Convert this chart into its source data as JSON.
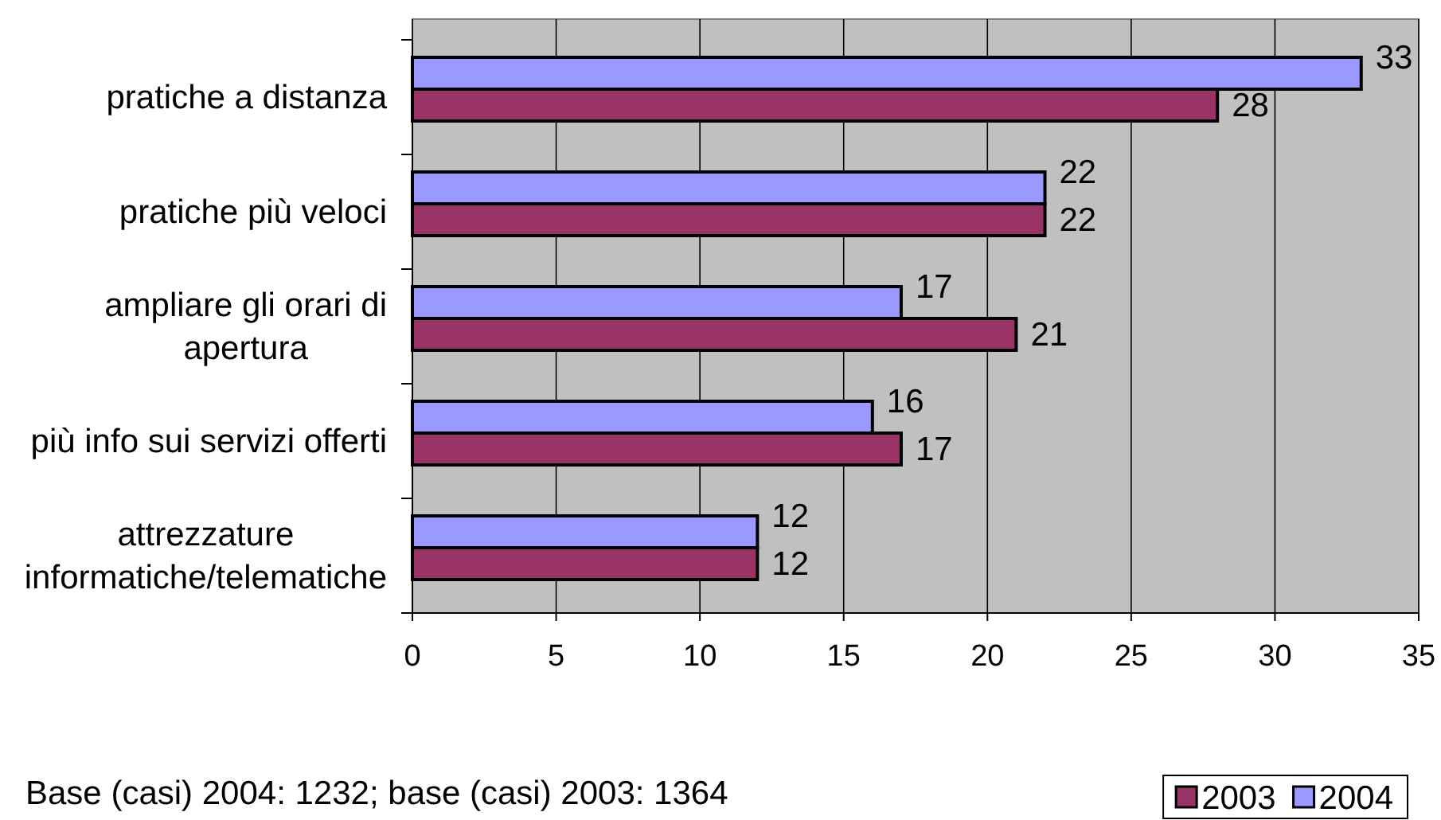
{
  "chart_data": {
    "type": "bar",
    "orientation": "horizontal",
    "categories": [
      "pratiche a distanza",
      "pratiche più veloci",
      "ampliare gli orari di apertura",
      "più info sui servizi offerti",
      "attrezzature informatiche/telematiche"
    ],
    "series": [
      {
        "name": "2003",
        "color": "#993366",
        "values": [
          28,
          22,
          21,
          17,
          12
        ]
      },
      {
        "name": "2004",
        "color": "#9999ff",
        "values": [
          33,
          22,
          17,
          16,
          12
        ]
      }
    ],
    "xlim": [
      0,
      35
    ],
    "xticks": [
      0,
      5,
      10,
      15,
      20,
      25,
      30,
      35
    ],
    "grid": "x",
    "legend": "bottom right",
    "data_labels": true,
    "annotations": [
      "Base (casi) 2004: 1232; base (casi) 2003: 1364"
    ]
  }
}
